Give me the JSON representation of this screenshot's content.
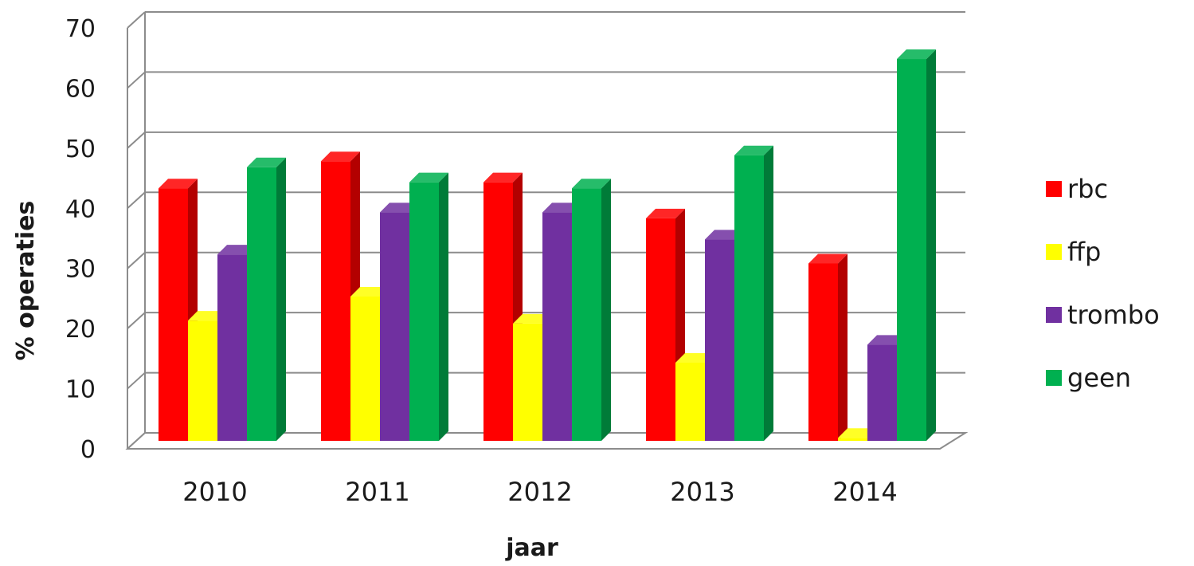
{
  "chart_data": {
    "type": "bar",
    "categories": [
      "2010",
      "2011",
      "2012",
      "2013",
      "2014"
    ],
    "series": [
      {
        "name": "rbc",
        "color": "#ff0000",
        "values": [
          42,
          46.5,
          43,
          37,
          29.5
        ]
      },
      {
        "name": "ffp",
        "color": "#ffff00",
        "values": [
          20,
          24,
          19.5,
          13,
          0.5
        ]
      },
      {
        "name": "trombo",
        "color": "#7030a0",
        "values": [
          31,
          38,
          38,
          33.5,
          16
        ]
      },
      {
        "name": "geen",
        "color": "#00b050",
        "values": [
          45.5,
          43,
          42,
          47.5,
          63.5
        ]
      }
    ],
    "title": "",
    "xlabel": "jaar",
    "ylabel": "% operaties",
    "ylim": [
      0,
      70
    ],
    "yticks": [
      "0",
      "10",
      "20",
      "30",
      "40",
      "50",
      "60",
      "70"
    ],
    "grid": true,
    "legend_position": "right"
  }
}
